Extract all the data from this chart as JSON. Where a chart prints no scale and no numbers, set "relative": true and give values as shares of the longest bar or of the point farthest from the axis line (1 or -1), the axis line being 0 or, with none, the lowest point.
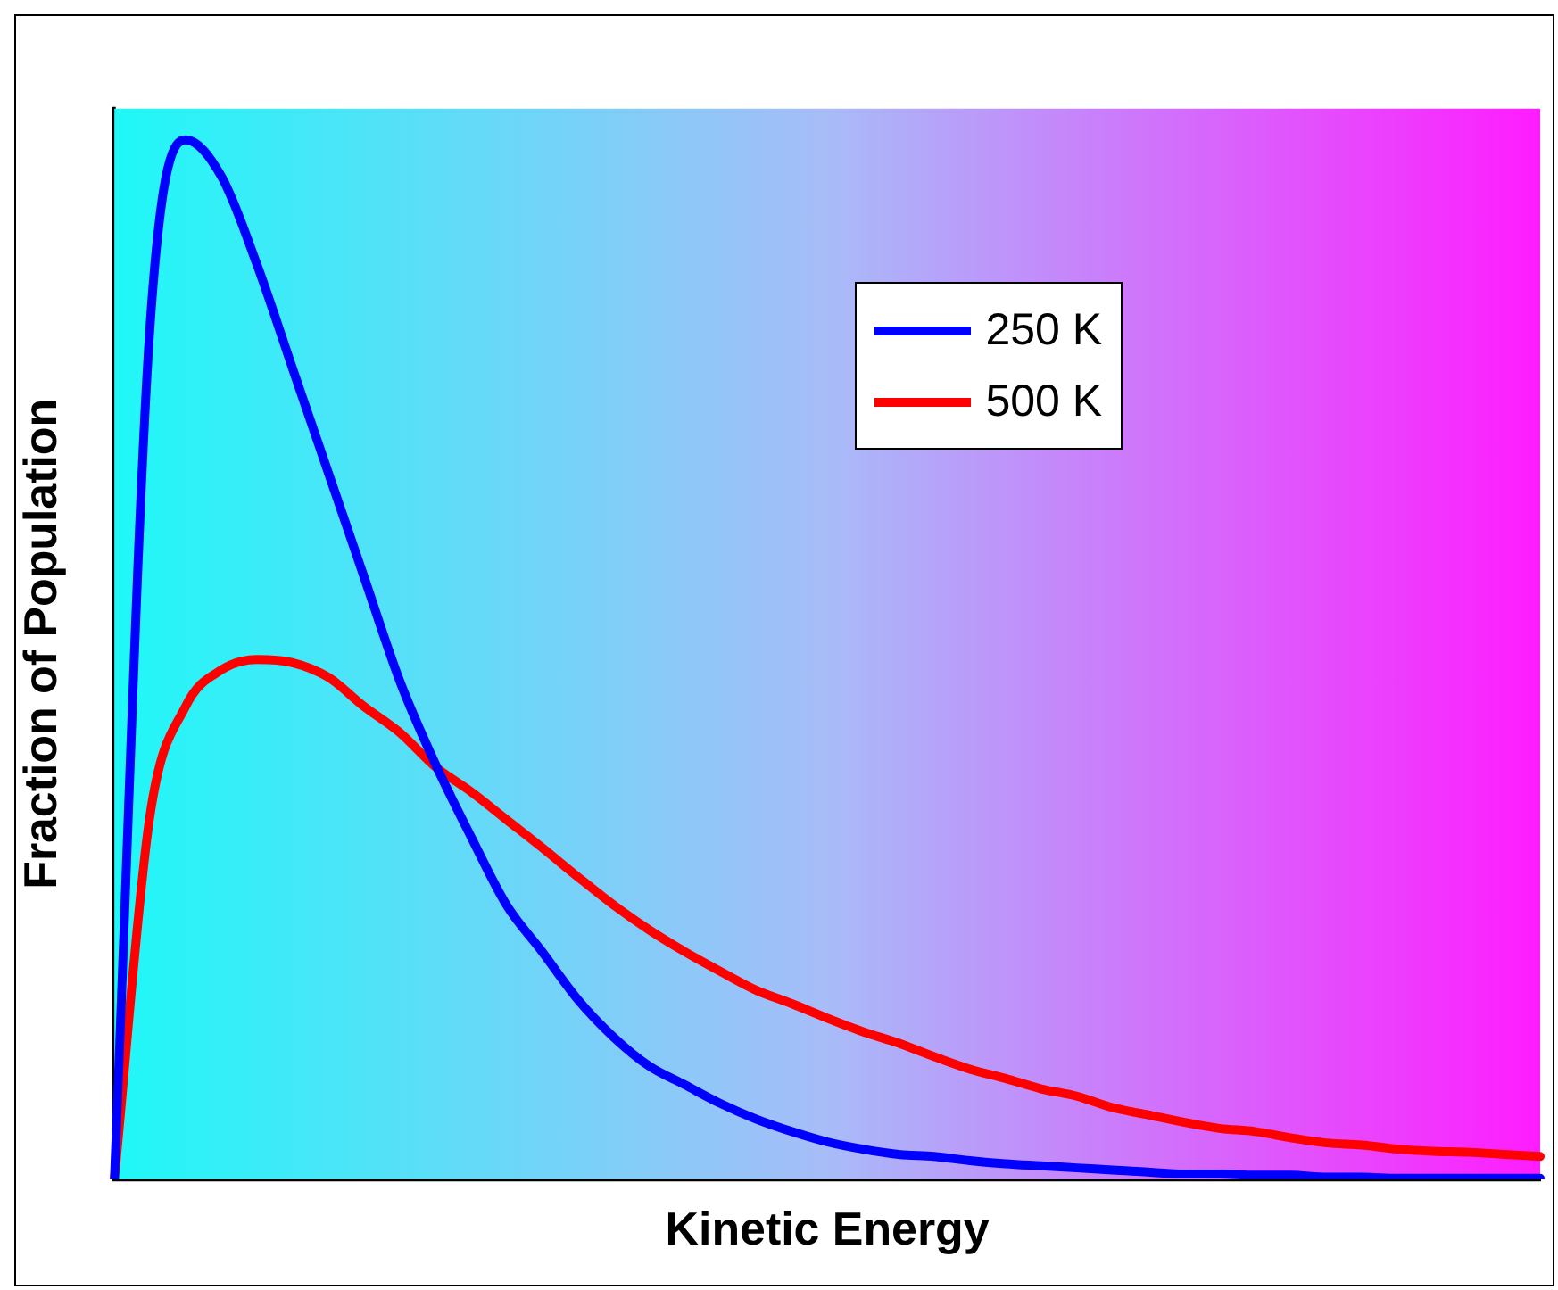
{
  "chart_data": {
    "type": "line",
    "relative": true,
    "xlabel": "Kinetic Energy",
    "ylabel": "Fraction of Population",
    "legend": "top right",
    "grid": false,
    "marker": "none",
    "line_style": "solid",
    "categories": [
      null,
      null,
      null,
      null,
      null,
      null,
      null,
      null,
      null,
      null,
      null,
      null,
      null,
      null,
      null,
      null,
      null,
      null,
      null,
      null,
      null,
      null,
      null,
      null,
      null,
      null,
      null,
      null,
      null,
      null,
      null,
      null,
      null,
      null,
      null,
      null,
      null,
      null,
      null,
      null,
      null
    ],
    "series": [
      {
        "name": "250 K",
        "color": "#0000ff",
        "values": [
          0,
          0.82,
          1.0,
          0.965,
          0.88,
          0.78,
          0.68,
          0.58,
          0.48,
          0.4,
          0.33,
          0.264,
          0.219,
          0.173,
          0.137,
          0.109,
          0.091,
          0.073,
          0.058,
          0.046,
          0.036,
          0.029,
          0.024,
          0.022,
          0.018,
          0.015,
          0.013,
          0.011,
          0.009,
          0.007,
          0.005,
          0.005,
          0.004,
          0.004,
          0.002,
          0.002,
          0.001,
          0.001,
          0.001,
          0.001,
          0.001
        ]
      },
      {
        "name": "500 K",
        "color": "#ff0000",
        "values": [
          0,
          0.35,
          0.455,
          0.49,
          0.5,
          0.497,
          0.483,
          0.455,
          0.43,
          0.397,
          0.373,
          0.346,
          0.319,
          0.291,
          0.264,
          0.24,
          0.219,
          0.2,
          0.182,
          0.169,
          0.155,
          0.142,
          0.131,
          0.118,
          0.106,
          0.097,
          0.087,
          0.08,
          0.069,
          0.062,
          0.055,
          0.049,
          0.046,
          0.04,
          0.035,
          0.033,
          0.029,
          0.027,
          0.026,
          0.024,
          0.022
        ]
      }
    ]
  }
}
